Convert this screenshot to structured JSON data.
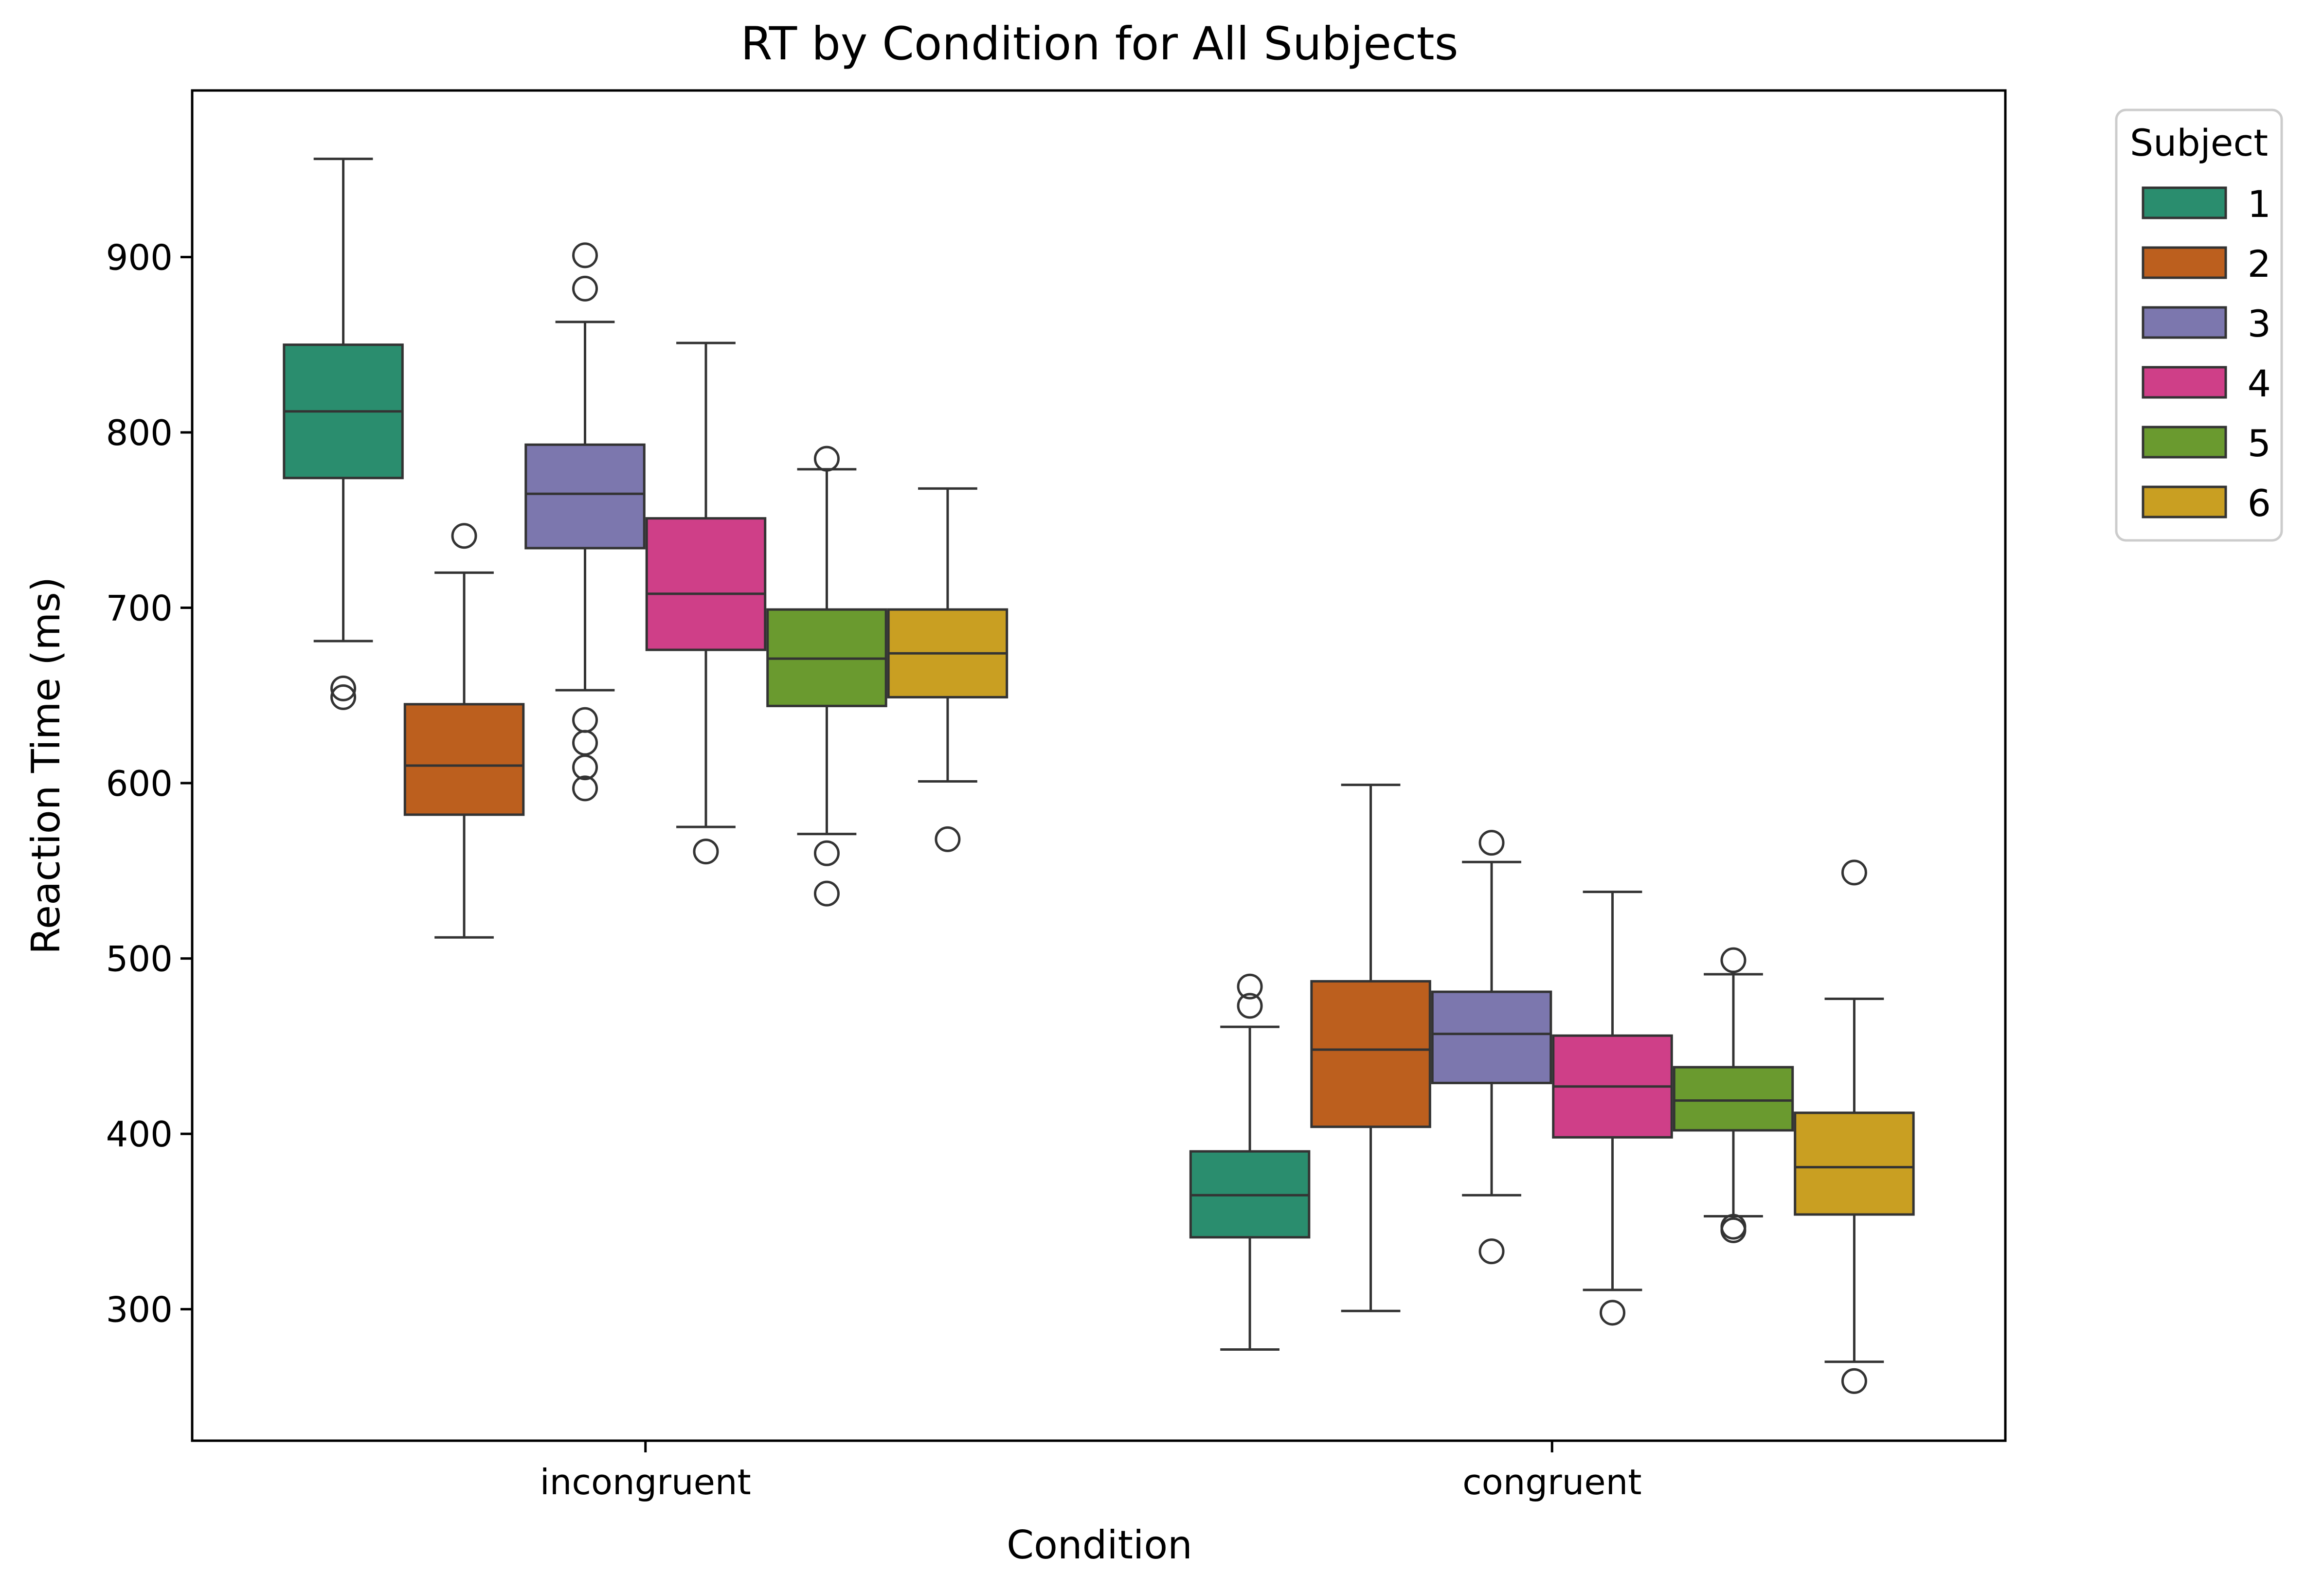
{
  "chart_data": {
    "type": "box",
    "title": "RT by Condition for All Subjects",
    "xlabel": "Condition",
    "ylabel": "Reaction Time (ms)",
    "categories": [
      "incongruent",
      "congruent"
    ],
    "ylim": [
      225,
      995
    ],
    "yticks": [
      300,
      400,
      500,
      600,
      700,
      800,
      900
    ],
    "grid": false,
    "legend": {
      "title": "Subject",
      "placement": "upper-right-outside"
    },
    "series": [
      {
        "name": "1",
        "color": "#2a8d6e",
        "boxes": [
          {
            "whisker_low": 681,
            "q1": 774,
            "median": 812,
            "q3": 850,
            "whisker_high": 956,
            "outliers": [
              649,
              654
            ]
          },
          {
            "whisker_low": 277,
            "q1": 341,
            "median": 365,
            "q3": 390,
            "whisker_high": 461,
            "outliers": [
              473,
              484
            ]
          }
        ]
      },
      {
        "name": "2",
        "color": "#bc5f1e",
        "boxes": [
          {
            "whisker_low": 512,
            "q1": 582,
            "median": 610,
            "q3": 645,
            "whisker_high": 720,
            "outliers": [
              741
            ]
          },
          {
            "whisker_low": 299,
            "q1": 404,
            "median": 448,
            "q3": 487,
            "whisker_high": 599,
            "outliers": []
          }
        ]
      },
      {
        "name": "3",
        "color": "#7c77ae",
        "boxes": [
          {
            "whisker_low": 653,
            "q1": 734,
            "median": 765,
            "q3": 793,
            "whisker_high": 863,
            "outliers": [
              597,
              609,
              623,
              636,
              882,
              901
            ]
          },
          {
            "whisker_low": 365,
            "q1": 429,
            "median": 457,
            "q3": 481,
            "whisker_high": 555,
            "outliers": [
              333,
              566
            ]
          }
        ]
      },
      {
        "name": "4",
        "color": "#cf3f88",
        "boxes": [
          {
            "whisker_low": 575,
            "q1": 676,
            "median": 708,
            "q3": 751,
            "whisker_high": 851,
            "outliers": [
              561
            ]
          },
          {
            "whisker_low": 311,
            "q1": 398,
            "median": 427,
            "q3": 456,
            "whisker_high": 538,
            "outliers": [
              298
            ]
          }
        ]
      },
      {
        "name": "5",
        "color": "#6a9a2f",
        "boxes": [
          {
            "whisker_low": 571,
            "q1": 644,
            "median": 671,
            "q3": 699,
            "whisker_high": 779,
            "outliers": [
              537,
              560,
              785
            ]
          },
          {
            "whisker_low": 353,
            "q1": 402,
            "median": 419,
            "q3": 438,
            "whisker_high": 491,
            "outliers": [
              345,
              347,
              499
            ]
          }
        ]
      },
      {
        "name": "6",
        "color": "#c99f22",
        "boxes": [
          {
            "whisker_low": 601,
            "q1": 649,
            "median": 674,
            "q3": 699,
            "whisker_high": 768,
            "outliers": [
              568
            ]
          },
          {
            "whisker_low": 270,
            "q1": 354,
            "median": 381,
            "q3": 412,
            "whisker_high": 477,
            "outliers": [
              259,
              549
            ]
          }
        ]
      }
    ]
  }
}
